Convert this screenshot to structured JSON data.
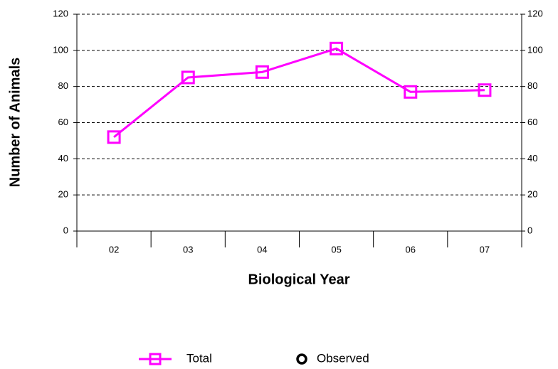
{
  "chart_data": {
    "type": "line",
    "x_label": "Biological Year",
    "y_label": "Number of Animals",
    "categories": [
      "02",
      "03",
      "04",
      "05",
      "06",
      "07"
    ],
    "series": [
      {
        "name": "Total",
        "color": "#ff00ff",
        "marker": "square",
        "values": [
          52,
          85,
          88,
          101,
          77,
          78
        ]
      },
      {
        "name": "Observed",
        "color": "#000000",
        "marker": "circle",
        "values": [
          null,
          null,
          null,
          null,
          null,
          null
        ]
      }
    ],
    "ylim": [
      0,
      120
    ],
    "yticks": [
      0,
      20,
      40,
      60,
      80,
      100,
      120
    ],
    "y2lim": [
      0,
      120
    ],
    "y2ticks": [
      0,
      20,
      40,
      60,
      80,
      100,
      120
    ],
    "grid": true
  }
}
